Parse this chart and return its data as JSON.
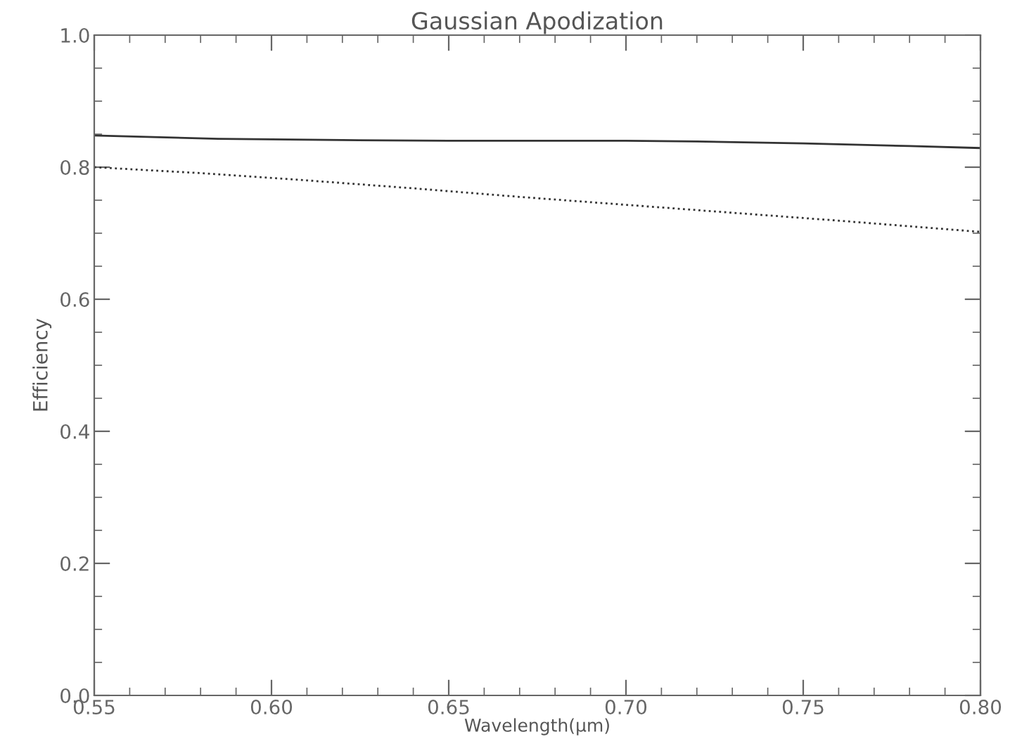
{
  "chart_data": {
    "type": "line",
    "title": "Gaussian Apodization",
    "xlabel": "Wavelength(μm)",
    "ylabel": "Efficiency",
    "series": [
      {
        "color": "#333333",
        "line_style": "solid",
        "x": [
          0.55,
          0.585,
          0.62,
          0.65,
          0.68,
          0.7,
          0.72,
          0.75,
          0.78,
          0.8
        ],
        "values": [
          0.848,
          0.843,
          0.841,
          0.84,
          0.84,
          0.84,
          0.839,
          0.836,
          0.832,
          0.829
        ]
      },
      {
        "color": "#333333",
        "line_style": "dotted",
        "x": [
          0.55,
          0.58,
          0.61,
          0.64,
          0.67,
          0.7,
          0.73,
          0.76,
          0.8
        ],
        "values": [
          0.8,
          0.791,
          0.78,
          0.768,
          0.755,
          0.743,
          0.731,
          0.719,
          0.702
        ]
      }
    ],
    "xlim": [
      0.55,
      0.8
    ],
    "xticks": [
      {
        "value": 0.55,
        "label": "0.55"
      },
      {
        "value": 0.6,
        "label": "0.60"
      },
      {
        "value": 0.65,
        "label": "0.65"
      },
      {
        "value": 0.7,
        "label": "0.70"
      },
      {
        "value": 0.75,
        "label": "0.75"
      },
      {
        "value": 0.8,
        "label": "0.80"
      }
    ],
    "ylim": [
      0,
      1
    ],
    "yticks": [
      {
        "value": 0,
        "label": "0.0"
      },
      {
        "value": 0.2,
        "label": "0.2"
      },
      {
        "value": 0.4,
        "label": "0.4"
      },
      {
        "value": 0.6,
        "label": "0.6"
      },
      {
        "value": 0.8,
        "label": "0.8"
      },
      {
        "value": 1,
        "label": "1.0"
      }
    ],
    "grid": false
  }
}
